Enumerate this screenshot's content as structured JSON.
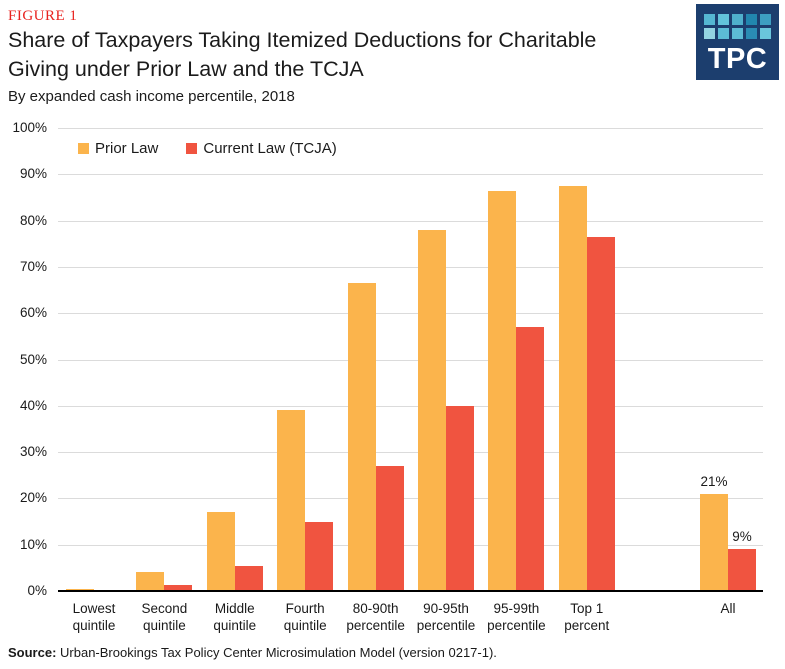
{
  "header": {
    "figure_label": "FIGURE 1",
    "title_line1": "Share of Taxpayers Taking Itemized Deductions for Charitable",
    "title_line2": "Giving under Prior Law and the TCJA",
    "subtitle": "By expanded cash income percentile, 2018",
    "logo_text": "TPC"
  },
  "colors": {
    "prior_law_orange": "#FBB44C",
    "current_law_red": "#F05440",
    "figure_label_red": "#E8231F",
    "logo_navy": "#1C3E6E",
    "gridline_gray": "#DBDBDB",
    "axis_black": "#000000"
  },
  "logo_square_colors": [
    "#55b7d2",
    "#62c3da",
    "#4fb0cc",
    "#2186ae",
    "#3d9fc2",
    "#93d4e2",
    "#5cbcd6",
    "#5cbcd6",
    "#2a8cb4",
    "#6ac6dc"
  ],
  "chart_data": {
    "type": "bar",
    "title": "Share of Taxpayers Taking Itemized Deductions for Charitable Giving under Prior Law and the TCJA",
    "subtitle": "By expanded cash income percentile, 2018",
    "categories": [
      "Lowest quintile",
      "Second quintile",
      "Middle quintile",
      "Fourth quintile",
      "80-90th percentile",
      "90-95th percentile",
      "95-99th percentile",
      "Top 1 percent",
      "All"
    ],
    "category_label_lines": [
      [
        "Lowest",
        "quintile"
      ],
      [
        "Second",
        "quintile"
      ],
      [
        "Middle",
        "quintile"
      ],
      [
        "Fourth",
        "quintile"
      ],
      [
        "80-90th",
        "percentile"
      ],
      [
        "90-95th",
        "percentile"
      ],
      [
        "95-99th",
        "percentile"
      ],
      [
        "Top 1",
        "percent"
      ],
      [
        "All"
      ]
    ],
    "series": [
      {
        "name": "Prior Law",
        "color": "#FBB44C",
        "values": [
          0.4,
          4,
          17,
          39,
          66.5,
          78,
          86.5,
          87.5,
          21
        ]
      },
      {
        "name": "Current Law (TCJA)",
        "color": "#F05440",
        "values": [
          0.1,
          1.2,
          5.5,
          15,
          27,
          40,
          57,
          76.5,
          9
        ]
      }
    ],
    "bar_value_labels": [
      {
        "series": 0,
        "category": 8,
        "text": "21%"
      },
      {
        "series": 1,
        "category": 8,
        "text": "9%"
      }
    ],
    "xlabel": "",
    "ylabel": "",
    "ylim": [
      0,
      100
    ],
    "ytick_step": 10,
    "ytick_suffix": "%",
    "grid": true,
    "legend_position": "top-left"
  },
  "source": {
    "label": "Source:",
    "text": " Urban-Brookings Tax Policy Center Microsimulation Model (version 0217-1)."
  }
}
